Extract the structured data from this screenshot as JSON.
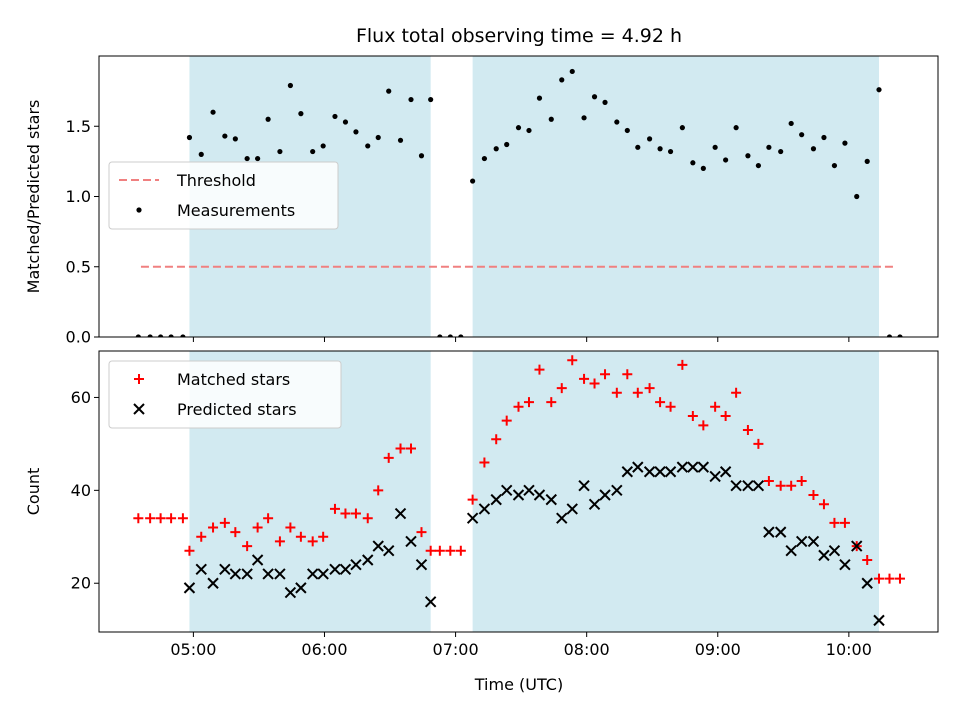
{
  "chart_data": {
    "type": "scatter",
    "title": "Flux total observing time = 4.92 h",
    "xlabel": "Time (UTC)",
    "x_unit": "hours UTC",
    "xlim": [
      4.28,
      10.68
    ],
    "xticks": [
      {
        "value": 5.0,
        "label": "05:00"
      },
      {
        "value": 6.0,
        "label": "06:00"
      },
      {
        "value": 7.0,
        "label": "07:00"
      },
      {
        "value": 8.0,
        "label": "08:00"
      },
      {
        "value": 9.0,
        "label": "09:00"
      },
      {
        "value": 10.0,
        "label": "10:00"
      }
    ],
    "shaded_intervals": [
      [
        4.97,
        6.81
      ],
      [
        7.13,
        10.23
      ]
    ],
    "shade_color": "#add8e6",
    "panels": [
      {
        "ylabel": "Matched/Predicted stars",
        "ylim": [
          0,
          2.0
        ],
        "yticks": [
          {
            "value": 0.0,
            "label": "0.0"
          },
          {
            "value": 0.5,
            "label": "0.5"
          },
          {
            "value": 1.0,
            "label": "1.0"
          },
          {
            "value": 1.5,
            "label": "1.5"
          }
        ],
        "legend": {
          "position": "center-left",
          "entries": [
            "Threshold",
            "Measurements"
          ]
        },
        "threshold": {
          "name": "Threshold",
          "y": 0.5,
          "x_range": [
            4.6,
            10.35
          ],
          "color": "#f08080",
          "style": "dashed"
        },
        "series": [
          {
            "name": "Measurements",
            "marker": "dot",
            "color": "#000000",
            "x": [
              4.58,
              4.67,
              4.75,
              4.83,
              4.92,
              4.97,
              5.06,
              5.15,
              5.24,
              5.32,
              5.41,
              5.49,
              5.57,
              5.66,
              5.74,
              5.82,
              5.91,
              5.99,
              6.08,
              6.16,
              6.24,
              6.33,
              6.41,
              6.49,
              6.58,
              6.66,
              6.74,
              6.81,
              6.88,
              6.96,
              7.04,
              7.13,
              7.22,
              7.31,
              7.39,
              7.48,
              7.56,
              7.64,
              7.73,
              7.81,
              7.89,
              7.98,
              8.06,
              8.14,
              8.23,
              8.31,
              8.39,
              8.48,
              8.56,
              8.64,
              8.73,
              8.81,
              8.89,
              8.98,
              9.06,
              9.14,
              9.23,
              9.31,
              9.39,
              9.48,
              9.56,
              9.64,
              9.73,
              9.81,
              9.89,
              9.97,
              10.06,
              10.14,
              10.23,
              10.31,
              10.39
            ],
            "y": [
              0,
              0,
              0,
              0,
              0,
              1.42,
              1.3,
              1.6,
              1.43,
              1.41,
              1.27,
              1.27,
              1.55,
              1.32,
              1.79,
              1.59,
              1.32,
              1.36,
              1.57,
              1.53,
              1.46,
              1.36,
              1.42,
              1.75,
              1.4,
              1.69,
              1.29,
              1.69,
              0,
              0,
              0,
              1.11,
              1.27,
              1.34,
              1.37,
              1.49,
              1.47,
              1.7,
              1.55,
              1.83,
              1.89,
              1.56,
              1.71,
              1.67,
              1.53,
              1.47,
              1.35,
              1.41,
              1.34,
              1.32,
              1.49,
              1.24,
              1.2,
              1.35,
              1.26,
              1.49,
              1.29,
              1.22,
              1.35,
              1.32,
              1.52,
              1.44,
              1.34,
              1.42,
              1.22,
              1.38,
              1.0,
              1.25,
              1.76,
              0,
              0
            ]
          }
        ]
      },
      {
        "ylabel": "Count",
        "ylim": [
          9.5,
          70
        ],
        "yticks": [
          {
            "value": 20,
            "label": "20"
          },
          {
            "value": 40,
            "label": "40"
          },
          {
            "value": 60,
            "label": "60"
          }
        ],
        "legend": {
          "position": "top-left",
          "entries": [
            "Matched stars",
            "Predicted stars"
          ]
        },
        "series": [
          {
            "name": "Matched stars",
            "marker": "plus",
            "color": "#ff0000",
            "x": [
              4.58,
              4.67,
              4.75,
              4.83,
              4.92,
              4.97,
              5.06,
              5.15,
              5.24,
              5.32,
              5.41,
              5.49,
              5.57,
              5.66,
              5.74,
              5.82,
              5.91,
              5.99,
              6.08,
              6.16,
              6.24,
              6.33,
              6.41,
              6.49,
              6.58,
              6.66,
              6.74,
              6.81,
              6.88,
              6.96,
              7.04,
              7.13,
              7.22,
              7.31,
              7.39,
              7.48,
              7.56,
              7.64,
              7.73,
              7.81,
              7.89,
              7.98,
              8.06,
              8.14,
              8.23,
              8.31,
              8.39,
              8.48,
              8.56,
              8.64,
              8.73,
              8.81,
              8.89,
              8.98,
              9.06,
              9.14,
              9.23,
              9.31,
              9.39,
              9.48,
              9.56,
              9.64,
              9.73,
              9.81,
              9.89,
              9.97,
              10.06,
              10.14,
              10.23,
              10.31,
              10.39
            ],
            "y": [
              34,
              34,
              34,
              34,
              34,
              27,
              30,
              32,
              33,
              31,
              28,
              32,
              34,
              29,
              32,
              30,
              29,
              30,
              36,
              35,
              35,
              34,
              40,
              47,
              49,
              49,
              31,
              27,
              27,
              27,
              27,
              38,
              46,
              51,
              55,
              58,
              59,
              66,
              59,
              62,
              68,
              64,
              63,
              65,
              61,
              65,
              61,
              62,
              59,
              58,
              67,
              56,
              54,
              58,
              56,
              61,
              53,
              50,
              42,
              41,
              41,
              42,
              39,
              37,
              33,
              33,
              28,
              25,
              21,
              21,
              21
            ]
          },
          {
            "name": "Predicted stars",
            "marker": "x",
            "color": "#000000",
            "x": [
              4.97,
              5.06,
              5.15,
              5.24,
              5.32,
              5.41,
              5.49,
              5.57,
              5.66,
              5.74,
              5.82,
              5.91,
              5.99,
              6.08,
              6.16,
              6.24,
              6.33,
              6.41,
              6.49,
              6.58,
              6.66,
              6.74,
              6.81,
              7.13,
              7.22,
              7.31,
              7.39,
              7.48,
              7.56,
              7.64,
              7.73,
              7.81,
              7.89,
              7.98,
              8.06,
              8.14,
              8.23,
              8.31,
              8.39,
              8.48,
              8.56,
              8.64,
              8.73,
              8.81,
              8.89,
              8.98,
              9.06,
              9.14,
              9.23,
              9.31,
              9.39,
              9.48,
              9.56,
              9.64,
              9.73,
              9.81,
              9.89,
              9.97,
              10.06,
              10.14,
              10.23
            ],
            "y": [
              19,
              23,
              20,
              23,
              22,
              22,
              25,
              22,
              22,
              18,
              19,
              22,
              22,
              23,
              23,
              24,
              25,
              28,
              27,
              35,
              29,
              24,
              16,
              34,
              36,
              38,
              40,
              39,
              40,
              39,
              38,
              34,
              36,
              41,
              37,
              39,
              40,
              44,
              45,
              44,
              44,
              44,
              45,
              45,
              45,
              43,
              44,
              41,
              41,
              41,
              31,
              31,
              27,
              29,
              29,
              26,
              27,
              24,
              28,
              20,
              12
            ]
          }
        ]
      }
    ]
  }
}
